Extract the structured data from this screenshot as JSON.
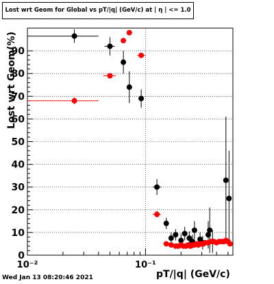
{
  "title": "Lost wrt Geom for Global vs pT/|q| (GeV/c) at |  η | <= 1.0",
  "footer": "Wed Jan 13 08:20:46 2021",
  "chart_data": {
    "type": "scatter",
    "xlabel": "pT/|q| (GeV/c)",
    "ylabel": "Lost wrt Geom(%)",
    "xscale": "log",
    "xlim": [
      0.01,
      0.55
    ],
    "ylim": [
      0,
      100
    ],
    "grid": true,
    "x_tick_labels": [
      "10⁻²",
      "10⁻¹"
    ],
    "y_tick_labels": [
      "0",
      "10",
      "20",
      "30",
      "40",
      "50",
      "60",
      "70",
      "80",
      "90"
    ],
    "series": [
      {
        "color": "#000000",
        "points": [
          {
            "x": 0.025,
            "y": 96.5,
            "xlo": 0.01,
            "xhi": 0.04,
            "err": 3
          },
          {
            "x": 0.05,
            "y": 92,
            "xlo": 0.045,
            "xhi": 0.055,
            "err": 4
          },
          {
            "x": 0.065,
            "y": 85,
            "xlo": 0.062,
            "xhi": 0.068,
            "err": 5
          },
          {
            "x": 0.073,
            "y": 74,
            "xlo": 0.07,
            "xhi": 0.076,
            "err": 7
          },
          {
            "x": 0.092,
            "y": 69,
            "xlo": 0.088,
            "xhi": 0.096,
            "err": 4
          },
          {
            "x": 0.125,
            "y": 30,
            "xlo": 0.115,
            "xhi": 0.135,
            "err": 3.5
          },
          {
            "x": 0.15,
            "y": 14,
            "xlo": 0.145,
            "xhi": 0.155,
            "err": 2.5
          },
          {
            "x": 0.165,
            "y": 7.5,
            "xlo": 0.16,
            "xhi": 0.17,
            "err": 2.5
          },
          {
            "x": 0.18,
            "y": 9,
            "xlo": 0.175,
            "xhi": 0.185,
            "err": 2.5
          },
          {
            "x": 0.2,
            "y": 6.5,
            "xlo": 0.195,
            "xhi": 0.205,
            "err": 3
          },
          {
            "x": 0.215,
            "y": 9.5,
            "xlo": 0.21,
            "xhi": 0.22,
            "err": 3
          },
          {
            "x": 0.235,
            "y": 7.5,
            "xlo": 0.23,
            "xhi": 0.24,
            "err": 3
          },
          {
            "x": 0.25,
            "y": 6,
            "xlo": 0.245,
            "xhi": 0.255,
            "err": 3
          },
          {
            "x": 0.26,
            "y": 11,
            "xlo": 0.255,
            "xhi": 0.265,
            "err": 4
          },
          {
            "x": 0.29,
            "y": 7,
            "xlo": 0.285,
            "xhi": 0.295,
            "err": 3
          },
          {
            "x": 0.305,
            "y": 5.5,
            "xlo": 0.3,
            "xhi": 0.31,
            "err": 3
          },
          {
            "x": 0.34,
            "y": 9,
            "xlo": 0.335,
            "xhi": 0.345,
            "err": 6
          },
          {
            "x": 0.35,
            "y": 11,
            "xlo": 0.345,
            "xhi": 0.355,
            "err": 10
          },
          {
            "x": 0.37,
            "y": 6,
            "xlo": 0.365,
            "xhi": 0.375,
            "err": 5
          },
          {
            "x": 0.48,
            "y": 33,
            "xlo": 0.475,
            "xhi": 0.485,
            "err": 28
          },
          {
            "x": 0.51,
            "y": 25,
            "xlo": 0.505,
            "xhi": 0.515,
            "err": 21
          }
        ]
      },
      {
        "color": "#ff0000",
        "points": [
          {
            "x": 0.025,
            "y": 68,
            "xlo": 0.01,
            "xhi": 0.04,
            "err": 1.5
          },
          {
            "x": 0.05,
            "y": 79,
            "xlo": 0.044,
            "xhi": 0.056,
            "err": 1
          },
          {
            "x": 0.065,
            "y": 94.5,
            "xlo": 0.062,
            "xhi": 0.068,
            "err": 1
          },
          {
            "x": 0.073,
            "y": 98,
            "xlo": 0.07,
            "xhi": 0.076,
            "err": 1
          },
          {
            "x": 0.092,
            "y": 88,
            "xlo": 0.085,
            "xhi": 0.1,
            "err": 1
          },
          {
            "x": 0.125,
            "y": 18,
            "xlo": 0.115,
            "xhi": 0.135,
            "err": 1.5
          },
          {
            "x": 0.15,
            "y": 5,
            "xlo": 0.145,
            "xhi": 0.155,
            "err": 1
          },
          {
            "x": 0.165,
            "y": 4.5,
            "xlo": 0.16,
            "xhi": 0.17,
            "err": 1
          },
          {
            "x": 0.18,
            "y": 4,
            "xlo": 0.175,
            "xhi": 0.185,
            "err": 1
          },
          {
            "x": 0.19,
            "y": 4,
            "xlo": 0.185,
            "xhi": 0.195,
            "err": 1
          },
          {
            "x": 0.2,
            "y": 4.5,
            "xlo": 0.195,
            "xhi": 0.205,
            "err": 1
          },
          {
            "x": 0.21,
            "y": 4,
            "xlo": 0.205,
            "xhi": 0.215,
            "err": 1
          },
          {
            "x": 0.22,
            "y": 4,
            "xlo": 0.215,
            "xhi": 0.225,
            "err": 1
          },
          {
            "x": 0.23,
            "y": 4.5,
            "xlo": 0.225,
            "xhi": 0.235,
            "err": 1
          },
          {
            "x": 0.24,
            "y": 4,
            "xlo": 0.235,
            "xhi": 0.245,
            "err": 1
          },
          {
            "x": 0.25,
            "y": 4.5,
            "xlo": 0.245,
            "xhi": 0.255,
            "err": 1
          },
          {
            "x": 0.26,
            "y": 4.5,
            "xlo": 0.255,
            "xhi": 0.265,
            "err": 1
          },
          {
            "x": 0.27,
            "y": 5,
            "xlo": 0.265,
            "xhi": 0.275,
            "err": 1
          },
          {
            "x": 0.28,
            "y": 4.5,
            "xlo": 0.275,
            "xhi": 0.285,
            "err": 1
          },
          {
            "x": 0.29,
            "y": 5,
            "xlo": 0.285,
            "xhi": 0.295,
            "err": 1
          },
          {
            "x": 0.3,
            "y": 5,
            "xlo": 0.295,
            "xhi": 0.305,
            "err": 1
          },
          {
            "x": 0.31,
            "y": 5,
            "xlo": 0.305,
            "xhi": 0.315,
            "err": 1
          },
          {
            "x": 0.32,
            "y": 5.5,
            "xlo": 0.315,
            "xhi": 0.325,
            "err": 1
          },
          {
            "x": 0.34,
            "y": 5.5,
            "xlo": 0.335,
            "xhi": 0.345,
            "err": 1
          },
          {
            "x": 0.36,
            "y": 6,
            "xlo": 0.355,
            "xhi": 0.365,
            "err": 1
          },
          {
            "x": 0.38,
            "y": 6,
            "xlo": 0.375,
            "xhi": 0.385,
            "err": 1
          },
          {
            "x": 0.4,
            "y": 5.5,
            "xlo": 0.395,
            "xhi": 0.405,
            "err": 1
          },
          {
            "x": 0.42,
            "y": 6,
            "xlo": 0.415,
            "xhi": 0.425,
            "err": 1
          },
          {
            "x": 0.44,
            "y": 6,
            "xlo": 0.435,
            "xhi": 0.445,
            "err": 1
          },
          {
            "x": 0.46,
            "y": 6,
            "xlo": 0.455,
            "xhi": 0.465,
            "err": 1
          },
          {
            "x": 0.48,
            "y": 6.5,
            "xlo": 0.475,
            "xhi": 0.485,
            "err": 1
          },
          {
            "x": 0.5,
            "y": 6,
            "xlo": 0.495,
            "xhi": 0.505,
            "err": 1
          },
          {
            "x": 0.52,
            "y": 5,
            "xlo": 0.515,
            "xhi": 0.525,
            "err": 1
          }
        ]
      }
    ]
  }
}
